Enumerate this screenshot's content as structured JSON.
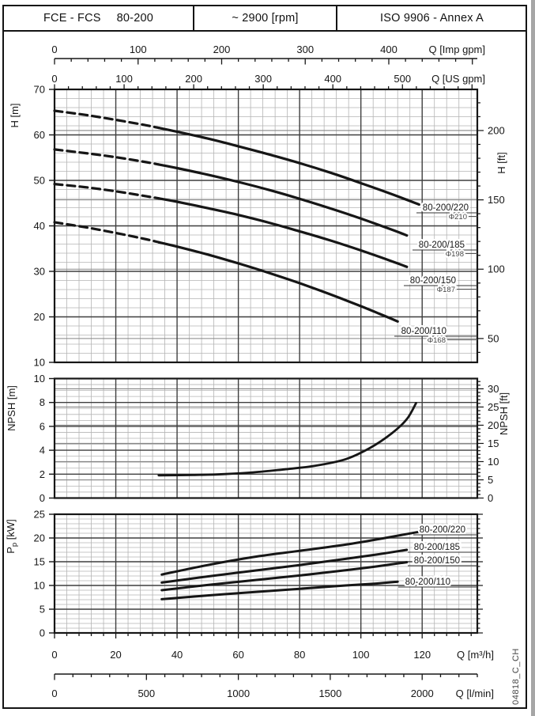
{
  "header": {
    "series": "FCE - FCS",
    "size": "80-200",
    "speed": "~ 2900 [rpm]",
    "standard": "ISO 9906 - Annex A"
  },
  "doc_code": "04818_C_CH",
  "colors": {
    "ink": "#161616",
    "grid_minor": "#b4b4b4",
    "grid_major": "#3f3f3f",
    "grid_ft": "#878787",
    "label_gray": "#474747",
    "edge_band": "#a6a6a6"
  },
  "scales": {
    "imp_gpm": {
      "label": "Q [Imp gpm]",
      "labeled_ticks": [
        0,
        100,
        200,
        300,
        400
      ],
      "minor_step": 20,
      "max": 500
    },
    "us_gpm": {
      "label": "Q [US gpm]",
      "labeled_ticks": [
        0,
        100,
        200,
        300,
        400,
        500
      ],
      "minor_step": 20,
      "max": 600
    },
    "m3h": {
      "label": "Q [m³/h]",
      "labeled_ticks": [
        0,
        20,
        40,
        60,
        80,
        100,
        120
      ],
      "minor_step": 4,
      "max": 136
    },
    "lmin": {
      "label": "Q [l/min]",
      "labeled_ticks": [
        0,
        500,
        1000,
        1500,
        2000
      ],
      "minor_step": 100,
      "max": 2300
    }
  },
  "chart_data": [
    {
      "id": "head",
      "type": "line",
      "xlabel": "Q [m³/h]",
      "ylabel_left": "H [m]",
      "ylabel_right": "H [ft]",
      "xlim": [
        0,
        138
      ],
      "ylim": [
        10,
        70
      ],
      "yticks_left": [
        10,
        20,
        30,
        40,
        50,
        60,
        70
      ],
      "y_minor_step": 2,
      "y_major_step": 10,
      "yticks_right_ft": [
        50,
        100,
        150,
        200
      ],
      "ft_minor_step": 10,
      "ft_gridlines": [
        50,
        100,
        150,
        200
      ],
      "series": [
        {
          "name": "80-200/220",
          "impeller": "Φ210",
          "dash_until": 34,
          "points": [
            [
              0,
              65.3
            ],
            [
              10,
              64.4
            ],
            [
              20,
              63.3
            ],
            [
              30,
              62.1
            ],
            [
              34,
              61.55
            ],
            [
              40,
              60.7
            ],
            [
              50,
              59.2
            ],
            [
              60,
              57.5
            ],
            [
              70,
              55.7
            ],
            [
              80,
              53.8
            ],
            [
              90,
              51.7
            ],
            [
              100,
              49.4
            ],
            [
              110,
              47.0
            ],
            [
              119,
              44.7
            ]
          ]
        },
        {
          "name": "80-200/185",
          "impeller": "Φ198",
          "dash_until": 34,
          "points": [
            [
              0,
              56.8
            ],
            [
              10,
              56.0
            ],
            [
              20,
              55.1
            ],
            [
              30,
              54.0
            ],
            [
              34,
              53.5
            ],
            [
              40,
              52.7
            ],
            [
              50,
              51.25
            ],
            [
              60,
              49.65
            ],
            [
              70,
              47.9
            ],
            [
              80,
              45.95
            ],
            [
              90,
              43.85
            ],
            [
              100,
              41.6
            ],
            [
              110,
              39.2
            ],
            [
              115,
              37.9
            ]
          ]
        },
        {
          "name": "80-200/150",
          "impeller": "Φ187",
          "dash_until": 34,
          "points": [
            [
              0,
              49.2
            ],
            [
              10,
              48.5
            ],
            [
              20,
              47.6
            ],
            [
              30,
              46.5
            ],
            [
              34,
              46.05
            ],
            [
              40,
              45.3
            ],
            [
              50,
              43.9
            ],
            [
              60,
              42.4
            ],
            [
              70,
              40.7
            ],
            [
              80,
              38.8
            ],
            [
              90,
              36.8
            ],
            [
              100,
              34.6
            ],
            [
              110,
              32.25
            ],
            [
              115,
              31.0
            ]
          ]
        },
        {
          "name": "80-200/110",
          "impeller": "Φ168",
          "dash_until": 34,
          "points": [
            [
              0,
              40.8
            ],
            [
              10,
              39.7
            ],
            [
              20,
              38.45
            ],
            [
              30,
              37.05
            ],
            [
              34,
              36.4
            ],
            [
              40,
              35.45
            ],
            [
              50,
              33.7
            ],
            [
              60,
              31.75
            ],
            [
              70,
              29.65
            ],
            [
              80,
              27.4
            ],
            [
              90,
              24.95
            ],
            [
              100,
              22.35
            ],
            [
              106,
              20.7
            ],
            [
              112,
              19.0
            ]
          ]
        }
      ]
    },
    {
      "id": "npsh",
      "type": "line",
      "ylabel_left": "NPSH [m]",
      "ylabel_right": "NPSH [ft]",
      "xlim": [
        0,
        138
      ],
      "ylim": [
        0,
        10
      ],
      "yticks_left": [
        0,
        2,
        4,
        6,
        8,
        10
      ],
      "y_minor_step": 0.5,
      "y_major_step": 2,
      "yticks_right_ft": [
        0,
        5,
        10,
        15,
        20,
        25,
        30
      ],
      "ft_minor_step": 1,
      "ft_gridlines": [
        5,
        10,
        15,
        20,
        25,
        30
      ],
      "series": [
        {
          "name": "NPSH",
          "points": [
            [
              34,
              1.9
            ],
            [
              45,
              1.93
            ],
            [
              55,
              2.0
            ],
            [
              65,
              2.15
            ],
            [
              75,
              2.4
            ],
            [
              85,
              2.7
            ],
            [
              95,
              3.25
            ],
            [
              103,
              4.2
            ],
            [
              110,
              5.4
            ],
            [
              115,
              6.6
            ],
            [
              118,
              7.95
            ]
          ]
        }
      ]
    },
    {
      "id": "power",
      "type": "line",
      "ylabel_left_parts": [
        "P",
        "p",
        " [kW]"
      ],
      "xlim": [
        0,
        138
      ],
      "ylim": [
        0,
        25
      ],
      "yticks_left": [
        0,
        5,
        10,
        15,
        20,
        25
      ],
      "y_minor_step": 1,
      "y_major_step": 5,
      "series": [
        {
          "name": "80-200/220",
          "points": [
            [
              35,
              12.3
            ],
            [
              50,
              14.3
            ],
            [
              65,
              16.0
            ],
            [
              80,
              17.3
            ],
            [
              95,
              18.6
            ],
            [
              107,
              19.9
            ],
            [
              119,
              21.3
            ]
          ]
        },
        {
          "name": "80-200/185",
          "points": [
            [
              35,
              10.6
            ],
            [
              50,
              11.9
            ],
            [
              65,
              13.1
            ],
            [
              80,
              14.3
            ],
            [
              95,
              15.6
            ],
            [
              105,
              16.5
            ],
            [
              115,
              17.5
            ]
          ]
        },
        {
          "name": "80-200/150",
          "points": [
            [
              35,
              9.0
            ],
            [
              50,
              10.1
            ],
            [
              65,
              11.1
            ],
            [
              80,
              12.1
            ],
            [
              95,
              13.2
            ],
            [
              105,
              14.0
            ],
            [
              115,
              14.9
            ]
          ]
        },
        {
          "name": "80-200/110",
          "points": [
            [
              35,
              7.1
            ],
            [
              50,
              7.9
            ],
            [
              65,
              8.6
            ],
            [
              80,
              9.3
            ],
            [
              95,
              10.0
            ],
            [
              105,
              10.4
            ],
            [
              112,
              10.8
            ]
          ]
        }
      ]
    }
  ]
}
